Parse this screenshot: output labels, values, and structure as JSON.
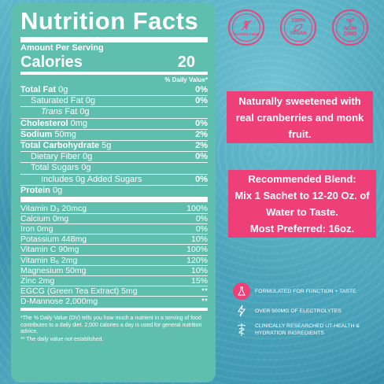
{
  "panel": {
    "title": "Nutrition  Facts",
    "amount_per_serving": "Amount Per Serving",
    "calories_label": "Calories",
    "calories_value": "20",
    "dv_header": "% Daily Value*",
    "rows": [
      {
        "label_bold": "Total Fat",
        "label": " 0g",
        "dv": "0%"
      },
      {
        "label_bold": "",
        "label": "Saturated Fat 0g",
        "dv": "0%"
      },
      {
        "label_bold": "",
        "label_italic": "Trans",
        "label": " Fat 0g",
        "dv": ""
      },
      {
        "label_bold": "Cholesterol",
        "label": " 0mg",
        "dv": "0%"
      },
      {
        "label_bold": "Sodium",
        "label": " 50mg",
        "dv": "2%"
      },
      {
        "label_bold": "Total Carbohydrate",
        "label": " 5g",
        "dv": "2%"
      },
      {
        "label_bold": "",
        "label": "Dietary Fiber 0g",
        "dv": "0%"
      },
      {
        "label_bold": "",
        "label": "Total Sugars 0g",
        "dv": ""
      },
      {
        "label_bold": "",
        "label": "Includes 0g Added Sugars",
        "dv": "0%"
      },
      {
        "label_bold": "Protein",
        "label": " 0g",
        "dv": ""
      }
    ],
    "vitamins": [
      {
        "label": "Vitamin D₃ 20mcg",
        "dv": "100%"
      },
      {
        "label": "Calcium 0mg",
        "dv": "0%"
      },
      {
        "label": "Iron 0mg",
        "dv": "0%"
      },
      {
        "label": "Potassium 448mg",
        "dv": "10%"
      },
      {
        "label": "Vitamin C 90mg",
        "dv": "100%"
      },
      {
        "label": "Vitamin B₆ 2mg",
        "dv": "120%"
      },
      {
        "label": "Magnesium 50mg",
        "dv": "10%"
      },
      {
        "label": "Zinc 2mg",
        "dv": "15%"
      },
      {
        "label": "EGCG (Green Tea Extract) 5mg",
        "dv": "**"
      },
      {
        "label": "D-Mannose 2,000mg",
        "dv": "**"
      }
    ],
    "footnote1": "*The % Daily Value (DV) tells you how much a nutrient in a serving of food contributes to a daily diet. 2,000 calories a day is used for general nutrition advice.",
    "footnote2": "** The daily value not established."
  },
  "badges": {
    "gluten_free": "GLUTEN FREE",
    "vegan_top": "100%",
    "vegan_bottom": "VEGAN",
    "non_gmo_top": "NON",
    "non_gmo_bottom": "GMO"
  },
  "callouts": {
    "sweetened": [
      "Naturally sweetened with",
      "real cranberries and monk",
      "fruit."
    ],
    "blend": [
      "Recommended Blend:",
      "Mix 1 Sachet to 12-20 Oz. of",
      "Water to Taste.",
      "Most Preferred: 16oz."
    ]
  },
  "features": [
    {
      "icon": "flask-icon",
      "text": "FORMULATED FOR FUNCTION + TASTE"
    },
    {
      "icon": "lightning-icon",
      "text": "OVER 500MG OF ELECTROLYTES"
    },
    {
      "icon": "caduceus-icon",
      "text": "CLINICALLY RESEARCHED UT-HEALTH & HYDRATION INGREDIENTS"
    }
  ],
  "colors": {
    "panel": "#5fbfae",
    "accent_pink": "#ee3f78",
    "text": "#ffffff"
  }
}
